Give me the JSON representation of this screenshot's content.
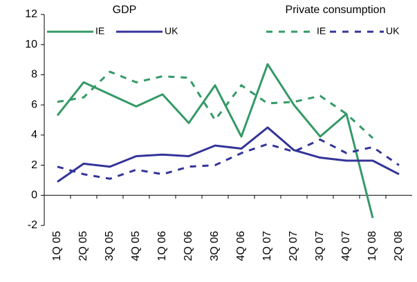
{
  "chart_data": {
    "type": "line",
    "categories": [
      "1Q 05",
      "2Q 05",
      "3Q 05",
      "4Q 05",
      "1Q 06",
      "2Q 06",
      "3Q 06",
      "4Q 06",
      "1Q 07",
      "2Q 07",
      "3Q 07",
      "4Q 07",
      "1Q 08",
      "2Q 08"
    ],
    "series": [
      {
        "name": "IE",
        "group": "GDP",
        "color": "#339966",
        "dashed": false,
        "values": [
          5.3,
          7.5,
          6.7,
          5.9,
          6.7,
          4.8,
          7.3,
          3.9,
          8.7,
          6.0,
          3.9,
          5.4,
          -1.5,
          null
        ]
      },
      {
        "name": "UK",
        "group": "GDP",
        "color": "#333399",
        "dashed": false,
        "values": [
          0.9,
          2.1,
          1.9,
          2.6,
          2.7,
          2.6,
          3.3,
          3.1,
          4.5,
          3.0,
          2.5,
          2.3,
          2.3,
          1.4
        ]
      },
      {
        "name": "IE",
        "group": "Private consumption",
        "color": "#339966",
        "dashed": true,
        "values": [
          6.2,
          6.5,
          8.2,
          7.5,
          7.9,
          7.8,
          5.0,
          7.3,
          6.1,
          6.2,
          6.6,
          5.4,
          3.8,
          null
        ]
      },
      {
        "name": "UK",
        "group": "Private consumption",
        "color": "#333399",
        "dashed": true,
        "values": [
          1.9,
          1.4,
          1.1,
          1.7,
          1.4,
          1.9,
          2.0,
          2.8,
          3.4,
          2.9,
          3.7,
          2.8,
          3.2,
          2.0
        ]
      }
    ],
    "ylim": [
      -2,
      12
    ],
    "yticks": [
      -2,
      0,
      2,
      4,
      6,
      8,
      10,
      12
    ],
    "grid": false
  }
}
